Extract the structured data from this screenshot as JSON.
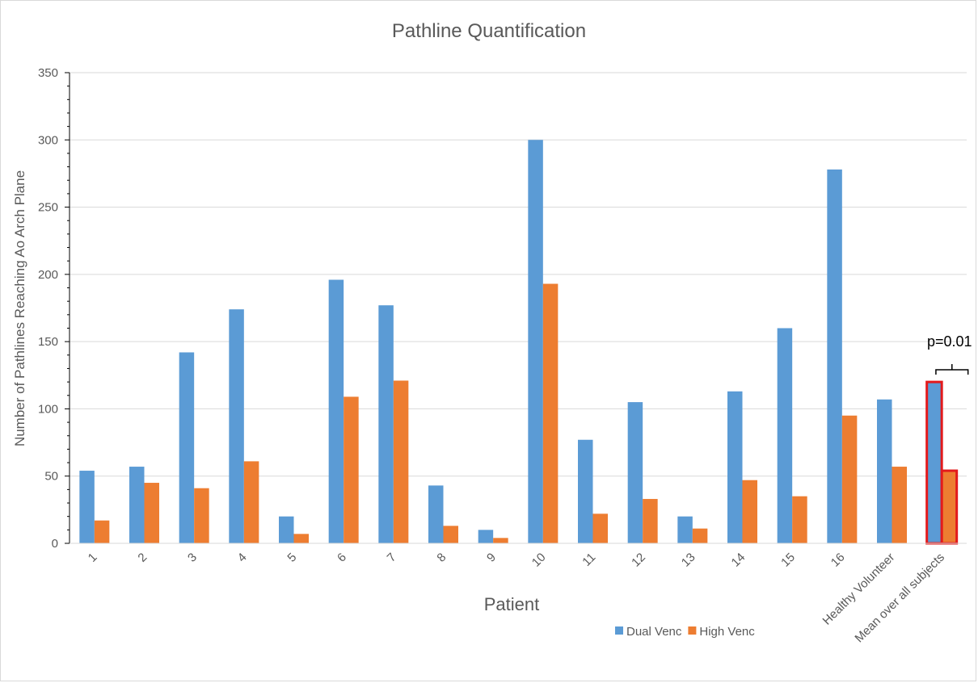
{
  "chart_data": {
    "type": "bar",
    "title": "Pathline Quantification",
    "xlabel": "Patient",
    "ylabel": "Number of Pathlines Reaching Ao Arch Plane",
    "ylim": [
      0,
      350
    ],
    "yticks": [
      0,
      50,
      100,
      150,
      200,
      250,
      300,
      350
    ],
    "grid": true,
    "legend": "bottom-right",
    "categories": [
      "1",
      "2",
      "3",
      "4",
      "5",
      "6",
      "7",
      "8",
      "9",
      "10",
      "11",
      "12",
      "13",
      "14",
      "15",
      "16",
      "Healthy Volunteer",
      "Mean over all subjects"
    ],
    "series": [
      {
        "name": "Dual Venc",
        "color": "#5b9bd5",
        "values": [
          54,
          57,
          142,
          174,
          20,
          196,
          177,
          43,
          10,
          300,
          77,
          105,
          20,
          113,
          160,
          278,
          107,
          120
        ]
      },
      {
        "name": "High Venc",
        "color": "#ed7d31",
        "values": [
          17,
          45,
          41,
          61,
          7,
          109,
          121,
          13,
          4,
          193,
          22,
          33,
          11,
          47,
          35,
          95,
          57,
          54
        ]
      }
    ],
    "annotation": {
      "text": "p=0.01",
      "category": "Mean over all subjects",
      "highlight_color": "#e31a1c"
    }
  }
}
